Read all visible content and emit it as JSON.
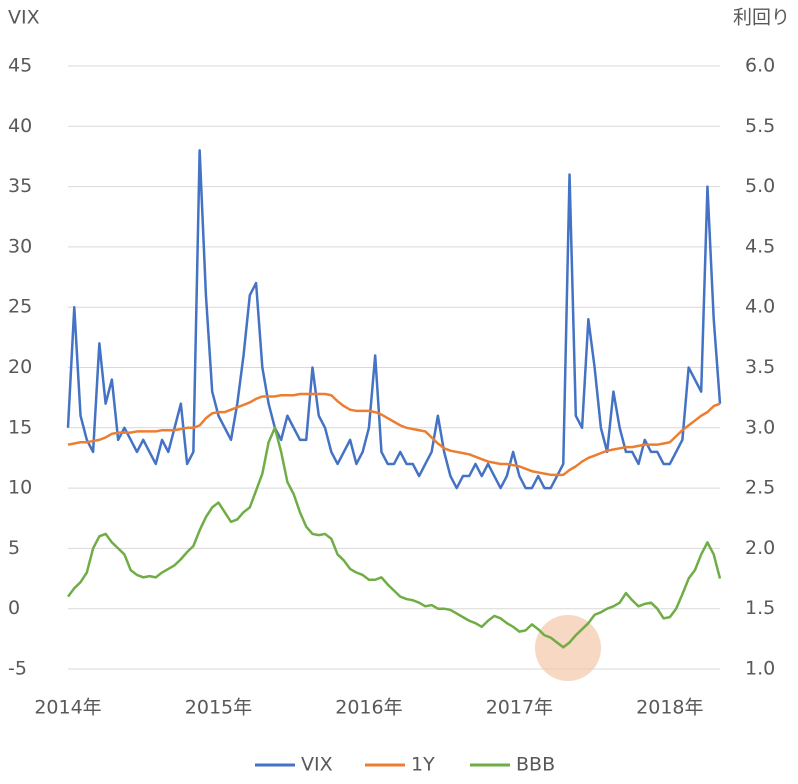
{
  "chart_data": {
    "type": "line",
    "y_label": "VIX",
    "y2_label": "利回り",
    "categories": [
      "2014年",
      null,
      null,
      null,
      null,
      null,
      null,
      null,
      null,
      null,
      null,
      null,
      null,
      null,
      null,
      null,
      null,
      null,
      null,
      null,
      null,
      null,
      null,
      null,
      "2015年",
      null,
      null,
      null,
      null,
      null,
      null,
      null,
      null,
      null,
      null,
      null,
      null,
      null,
      null,
      null,
      null,
      null,
      null,
      null,
      null,
      null,
      null,
      null,
      "2016年",
      null,
      null,
      null,
      null,
      null,
      null,
      null,
      null,
      null,
      null,
      null,
      null,
      null,
      null,
      null,
      null,
      null,
      null,
      null,
      null,
      null,
      null,
      null,
      "2017年",
      null,
      null,
      null,
      null,
      null,
      null,
      null,
      null,
      null,
      null,
      null,
      null,
      null,
      null,
      null,
      null,
      null,
      null,
      null,
      null,
      null,
      null,
      null,
      "2018年",
      null,
      null,
      null,
      null,
      null,
      null,
      null,
      null
    ],
    "ylim": [
      -5,
      45
    ],
    "yticks": [
      -5,
      0,
      5,
      10,
      15,
      20,
      25,
      30,
      35,
      40,
      45
    ],
    "y2lim": [
      1,
      6
    ],
    "y2ticks": [
      {
        "value": 1,
        "label": "1.0"
      },
      1.5,
      {
        "value": 2,
        "label": "2.0"
      },
      2.5,
      {
        "value": 3,
        "label": "3.0"
      },
      3.5,
      {
        "value": 4,
        "label": "4.0"
      },
      4.5,
      {
        "value": 5,
        "label": "5.0"
      },
      5.5,
      {
        "value": 6,
        "label": "6.0"
      }
    ],
    "grid": true,
    "legend": "bottom",
    "series": [
      {
        "name": "VIX",
        "color": "#4472c4",
        "values": [
          15,
          25,
          16,
          14,
          13,
          22,
          17,
          19,
          14,
          15,
          14,
          13,
          14,
          13,
          12,
          14,
          13,
          15,
          17,
          12,
          13,
          38,
          26,
          18,
          16,
          15,
          14,
          17,
          21,
          26,
          27,
          20,
          17,
          15,
          14,
          16,
          15,
          14,
          14,
          20,
          16,
          15,
          13,
          12,
          13,
          14,
          12,
          13,
          15,
          21,
          13,
          12,
          12,
          13,
          12,
          12,
          11,
          12,
          13,
          16,
          13,
          11,
          10,
          11,
          11,
          12,
          11,
          12,
          11,
          10,
          11,
          13,
          11,
          10,
          10,
          11,
          10,
          10,
          11,
          12,
          36,
          16,
          15,
          24,
          20,
          15,
          13,
          18,
          15,
          13,
          13,
          12,
          14,
          13,
          13,
          12,
          12,
          13,
          14,
          20,
          19,
          18,
          35,
          24,
          17
        ]
      },
      {
        "name": "1Y",
        "color": "#ed7d31",
        "axis": "y2",
        "values": [
          2.86,
          2.87,
          2.88,
          2.88,
          2.89,
          2.9,
          2.92,
          2.95,
          2.96,
          2.96,
          2.96,
          2.97,
          2.97,
          2.97,
          2.97,
          2.98,
          2.98,
          2.98,
          2.99,
          3.0,
          3.0,
          3.02,
          3.08,
          3.12,
          3.13,
          3.13,
          3.15,
          3.17,
          3.19,
          3.21,
          3.24,
          3.26,
          3.26,
          3.26,
          3.27,
          3.27,
          3.27,
          3.28,
          3.28,
          3.28,
          3.28,
          3.28,
          3.27,
          3.22,
          3.18,
          3.15,
          3.14,
          3.14,
          3.14,
          3.13,
          3.11,
          3.08,
          3.05,
          3.02,
          3.0,
          2.99,
          2.98,
          2.97,
          2.92,
          2.87,
          2.83,
          2.81,
          2.8,
          2.79,
          2.78,
          2.76,
          2.74,
          2.72,
          2.71,
          2.7,
          2.7,
          2.69,
          2.68,
          2.66,
          2.64,
          2.63,
          2.62,
          2.61,
          2.61,
          2.61,
          2.65,
          2.68,
          2.72,
          2.75,
          2.77,
          2.79,
          2.81,
          2.82,
          2.83,
          2.84,
          2.84,
          2.85,
          2.86,
          2.86,
          2.86,
          2.87,
          2.88,
          2.93,
          2.98,
          3.02,
          3.06,
          3.1,
          3.13,
          3.18,
          3.2
        ]
      },
      {
        "name": "BBB",
        "color": "#70ad47",
        "axis": "y2",
        "values": [
          1.6,
          1.67,
          1.72,
          1.8,
          2.0,
          2.1,
          2.12,
          2.05,
          2.0,
          1.95,
          1.82,
          1.78,
          1.76,
          1.77,
          1.76,
          1.8,
          1.83,
          1.86,
          1.91,
          1.97,
          2.02,
          2.15,
          2.26,
          2.34,
          2.38,
          2.3,
          2.22,
          2.24,
          2.3,
          2.34,
          2.48,
          2.62,
          2.88,
          3.0,
          2.8,
          2.55,
          2.45,
          2.3,
          2.18,
          2.12,
          2.11,
          2.12,
          2.08,
          1.95,
          1.9,
          1.83,
          1.8,
          1.78,
          1.74,
          1.74,
          1.76,
          1.7,
          1.65,
          1.6,
          1.58,
          1.57,
          1.55,
          1.52,
          1.53,
          1.5,
          1.5,
          1.49,
          1.46,
          1.43,
          1.4,
          1.38,
          1.35,
          1.4,
          1.44,
          1.42,
          1.38,
          1.35,
          1.31,
          1.32,
          1.37,
          1.33,
          1.28,
          1.26,
          1.22,
          1.18,
          1.22,
          1.28,
          1.33,
          1.38,
          1.45,
          1.47,
          1.5,
          1.52,
          1.55,
          1.63,
          1.57,
          1.52,
          1.54,
          1.55,
          1.5,
          1.42,
          1.43,
          1.5,
          1.62,
          1.75,
          1.82,
          1.95,
          2.05,
          1.95,
          1.75
        ]
      }
    ]
  }
}
